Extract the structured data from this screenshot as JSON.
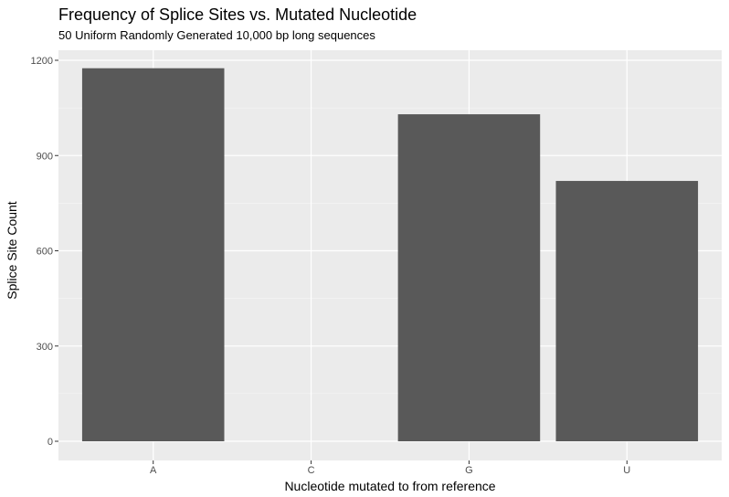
{
  "chart_data": {
    "type": "bar",
    "title": "Frequency of Splice Sites vs. Mutated Nucleotide",
    "subtitle": "50 Uniform Randomly Generated 10,000 bp long sequences",
    "xlabel": "Nucleotide mutated to from reference",
    "ylabel": "Splice Site Count",
    "categories": [
      "A",
      "C",
      "G",
      "U"
    ],
    "values": [
      1175,
      0,
      1030,
      820
    ],
    "ylim": [
      0,
      1200
    ],
    "yticks": [
      0,
      300,
      600,
      900,
      1200
    ],
    "grid": true,
    "legend": "none",
    "colors": {
      "bar": "#595959",
      "panel_background": "#ebebeb",
      "grid_major": "#ffffff",
      "tick_mark": "#333333"
    }
  }
}
